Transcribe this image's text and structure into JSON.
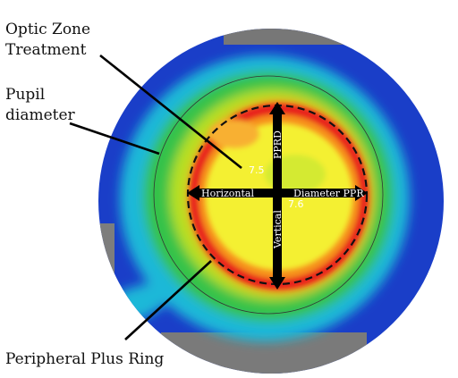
{
  "callouts": {
    "optic_zone_line1": "Optic Zone",
    "optic_zone_line2": "Treatment",
    "pupil_line1": "Pupil",
    "pupil_line2": "diameter",
    "peripheral": "Peripheral Plus Ring"
  },
  "axes": {
    "horizontal": "Horizontal",
    "diameter": "Diameter PPR",
    "pprd": "PPRD",
    "vertical": "Vertical"
  },
  "values": {
    "center_value": "7.5",
    "secondary_value": "7.6"
  },
  "colors": {
    "outer_blue": "#1a3ec8",
    "cyan": "#1fb8d8",
    "green": "#34c24a",
    "yellow_green": "#b8e020",
    "yellow": "#f4f030",
    "orange": "#f6921e",
    "red": "#e8221c",
    "no_data_gray": "#7a7a7a"
  }
}
